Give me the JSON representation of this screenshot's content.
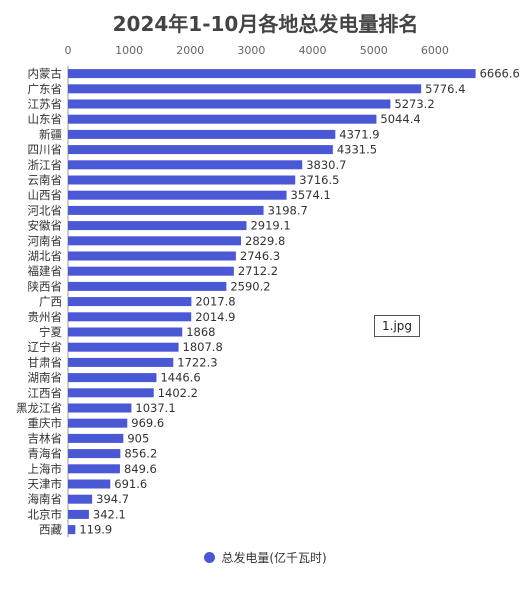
{
  "image_tag": "1.jpg",
  "chart_data": {
    "type": "bar",
    "orientation": "horizontal",
    "title": "2024年1-10月各地总发电量排名",
    "categories": [
      "内蒙古",
      "广东省",
      "江苏省",
      "山东省",
      "新疆",
      "四川省",
      "浙江省",
      "云南省",
      "山西省",
      "河北省",
      "安徽省",
      "河南省",
      "湖北省",
      "福建省",
      "陕西省",
      "广西",
      "贵州省",
      "宁夏",
      "辽宁省",
      "甘肃省",
      "湖南省",
      "江西省",
      "黑龙江省",
      "重庆市",
      "吉林省",
      "青海省",
      "上海市",
      "天津市",
      "海南省",
      "北京市",
      "西藏"
    ],
    "series": [
      {
        "name": "总发电量(亿千瓦时)",
        "values": [
          6666.6,
          5776.4,
          5273.2,
          5044.4,
          4371.9,
          4331.5,
          3830.7,
          3716.5,
          3574.1,
          3198.7,
          2919.1,
          2829.8,
          2746.3,
          2712.2,
          2590.2,
          2017.8,
          2014.9,
          1868,
          1807.8,
          1722.3,
          1446.6,
          1402.2,
          1037.1,
          969.6,
          905,
          856.2,
          849.6,
          691.6,
          394.7,
          342.1,
          119.9
        ]
      }
    ],
    "value_labels": [
      "6666.6",
      "5776.4",
      "5273.2",
      "5044.4",
      "4371.9",
      "4331.5",
      "3830.7",
      "3716.5",
      "3574.1",
      "3198.7",
      "2919.1",
      "2829.8",
      "2746.3",
      "2712.2",
      "2590.2",
      "2017.8",
      "2014.9",
      "1868",
      "1807.8",
      "1722.3",
      "1446.6",
      "1402.2",
      "1037.1",
      "969.6",
      "905",
      "856.2",
      "849.6",
      "691.6",
      "394.7",
      "342.1",
      "119.9"
    ],
    "x_ticks": [
      "0",
      "1000",
      "2000",
      "3000",
      "4000",
      "5000",
      "6000"
    ],
    "xlim": [
      0,
      7000
    ],
    "x_axis_position": "top",
    "grid": false,
    "legend_position": "bottom",
    "bar_color": "#4a58d6"
  }
}
